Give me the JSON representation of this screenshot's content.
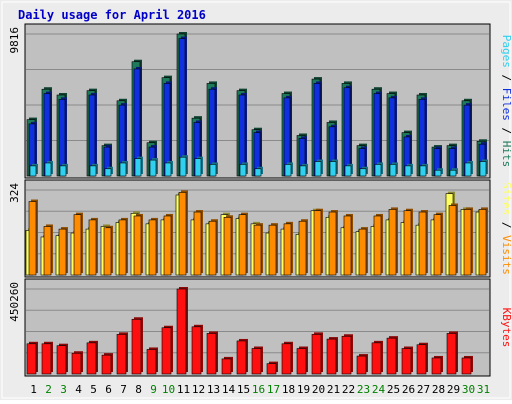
{
  "title": "Daily usage for April 2016",
  "colors": {
    "background": "#ececec",
    "panel": "#c0c0c0",
    "grid": "#8a8a8a",
    "title": "#0000c8",
    "hits": "#1e7a5a",
    "files": "#1030e0",
    "pages": "#30d0f0",
    "visits": "#ff8c00",
    "sites": "#ffff60",
    "kbytes": "#ff1010",
    "weekend_label": "#008000",
    "weekday_label": "#000000"
  },
  "chart_data": [
    {
      "type": "bar",
      "title": "Daily usage for April 2016",
      "ylabel_max": "9816",
      "legend": [
        {
          "name": "Pages",
          "color_key": "pages"
        },
        {
          "name": "Files",
          "color_key": "files"
        },
        {
          "name": "Hits",
          "color_key": "hits"
        }
      ],
      "ylim": [
        0,
        9816
      ],
      "categories": [
        "1",
        "2",
        "3",
        "4",
        "5",
        "6",
        "7",
        "8",
        "9",
        "10",
        "11",
        "12",
        "13",
        "14",
        "15",
        "16",
        "17",
        "18",
        "19",
        "20",
        "21",
        "22",
        "23",
        "24",
        "25",
        "26",
        "27",
        "28",
        "29",
        "30",
        "31"
      ],
      "series": [
        {
          "name": "Hits",
          "values": [
            3900,
            6000,
            5600,
            0,
            5900,
            2100,
            5200,
            7900,
            2300,
            6800,
            9816,
            4000,
            6400,
            0,
            5900,
            3200,
            0,
            5700,
            2800,
            6700,
            3700,
            6400,
            2100,
            6000,
            5700,
            3000,
            5600,
            2000,
            2100,
            5200,
            2400
          ]
        },
        {
          "name": "Files",
          "values": [
            3600,
            5700,
            5300,
            0,
            5600,
            2000,
            4900,
            7400,
            2000,
            6400,
            9500,
            3700,
            6000,
            0,
            5600,
            3000,
            0,
            5400,
            2600,
            6400,
            3400,
            6100,
            1900,
            5700,
            5400,
            2700,
            5300,
            1900,
            1900,
            4900,
            2200
          ]
        },
        {
          "name": "Pages",
          "values": [
            700,
            900,
            700,
            0,
            700,
            500,
            900,
            1200,
            1100,
            900,
            1300,
            1200,
            800,
            0,
            800,
            500,
            0,
            800,
            700,
            1000,
            1000,
            700,
            500,
            800,
            800,
            700,
            700,
            400,
            400,
            900,
            1000
          ]
        }
      ]
    },
    {
      "type": "bar",
      "ylabel_max": "324",
      "legend": [
        {
          "name": "Sites",
          "color_key": "sites"
        },
        {
          "name": "Visits",
          "color_key": "visits"
        }
      ],
      "ylim": [
        0,
        324
      ],
      "categories": [
        "1",
        "2",
        "3",
        "4",
        "5",
        "6",
        "7",
        "8",
        "9",
        "10",
        "11",
        "12",
        "13",
        "14",
        "15",
        "16",
        "17",
        "18",
        "19",
        "20",
        "21",
        "22",
        "23",
        "24",
        "25",
        "26",
        "27",
        "28",
        "29",
        "30",
        "31"
      ],
      "series": [
        {
          "name": "Sites",
          "values": [
            170,
            145,
            150,
            160,
            175,
            185,
            200,
            235,
            195,
            210,
            305,
            210,
            195,
            230,
            215,
            195,
            160,
            175,
            155,
            245,
            220,
            180,
            165,
            185,
            210,
            200,
            190,
            210,
            310,
            250,
            240
          ]
        },
        {
          "name": "Visits",
          "values": [
            280,
            185,
            175,
            230,
            210,
            180,
            210,
            225,
            210,
            225,
            315,
            240,
            205,
            220,
            230,
            190,
            190,
            195,
            205,
            245,
            240,
            225,
            175,
            225,
            250,
            245,
            240,
            230,
            265,
            250,
            250
          ]
        }
      ]
    },
    {
      "type": "bar",
      "ylabel_max": "450260",
      "legend": [
        {
          "name": "KBytes",
          "color_key": "kbytes"
        }
      ],
      "ylim": [
        0,
        450260
      ],
      "categories": [
        "1",
        "2",
        "3",
        "4",
        "5",
        "6",
        "7",
        "8",
        "9",
        "10",
        "11",
        "12",
        "13",
        "14",
        "15",
        "16",
        "17",
        "18",
        "19",
        "20",
        "21",
        "22",
        "23",
        "24",
        "25",
        "26",
        "27",
        "28",
        "29",
        "30",
        "31"
      ],
      "series": [
        {
          "name": "KBytes",
          "values": [
            160000,
            160000,
            150000,
            110000,
            165000,
            100000,
            210000,
            290000,
            130000,
            245000,
            450260,
            250000,
            215000,
            80000,
            175000,
            135000,
            55000,
            160000,
            135000,
            210000,
            185000,
            200000,
            95000,
            165000,
            190000,
            135000,
            155000,
            85000,
            215000,
            85000,
            0
          ]
        }
      ]
    }
  ]
}
